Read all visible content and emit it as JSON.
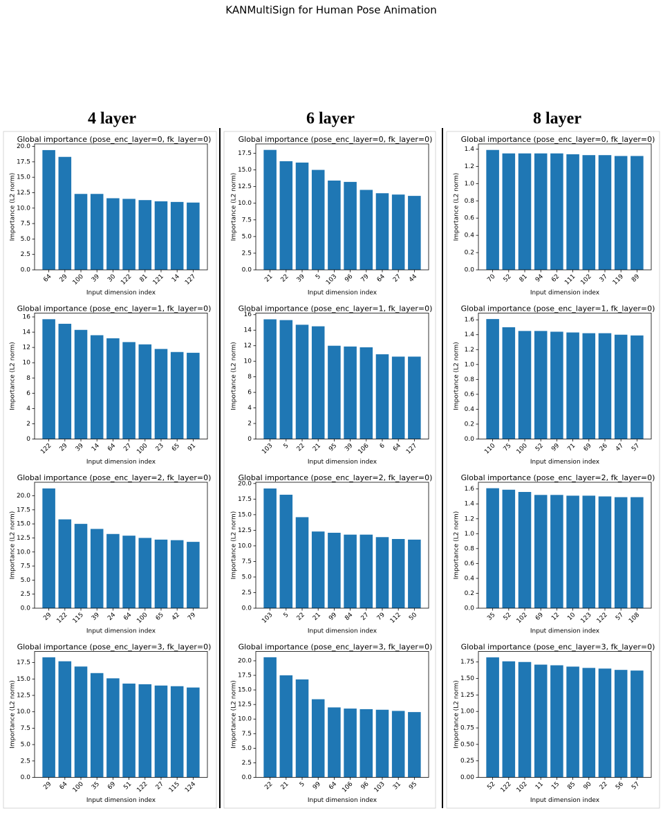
{
  "header": {
    "title": "KANMultiSign for Human Pose Animation",
    "columns": [
      "4 layer",
      "6 layer",
      "8 layer"
    ]
  },
  "chart_data": [
    {
      "type": "bar",
      "title": "Global importance (pose_enc_layer=0, fk_layer=0)",
      "xlabel": "Input dimension index",
      "ylabel": "Importance (L2 norm)",
      "color": "#1f77b4",
      "categories": [
        "64",
        "29",
        "100",
        "39",
        "30",
        "122",
        "81",
        "121",
        "14",
        "127"
      ],
      "values": [
        19.4,
        18.3,
        12.3,
        12.3,
        11.6,
        11.5,
        11.3,
        11.1,
        11.0,
        10.9
      ],
      "ylim": [
        0,
        20.4
      ],
      "yticks": [
        {
          "value": 0,
          "label": "0.0"
        },
        2.5,
        {
          "value": 5,
          "label": "5.0"
        },
        7.5,
        {
          "value": 10,
          "label": "10.0"
        },
        12.5,
        {
          "value": 15,
          "label": "15.0"
        },
        17.5,
        {
          "value": 20,
          "label": "20.0"
        }
      ]
    },
    {
      "type": "bar",
      "title": "Global importance (pose_enc_layer=1, fk_layer=0)",
      "xlabel": "Input dimension index",
      "ylabel": "Importance (L2 norm)",
      "color": "#1f77b4",
      "categories": [
        "122",
        "29",
        "39",
        "14",
        "64",
        "27",
        "100",
        "23",
        "65",
        "91"
      ],
      "values": [
        15.7,
        15.1,
        14.3,
        13.6,
        13.2,
        12.7,
        12.4,
        11.8,
        11.4,
        11.3
      ],
      "ylim": [
        0,
        16.5
      ],
      "yticks": [
        0,
        2,
        4,
        6,
        8,
        10,
        12,
        14,
        16
      ]
    },
    {
      "type": "bar",
      "title": "Global importance (pose_enc_layer=2, fk_layer=0)",
      "xlabel": "Input dimension index",
      "ylabel": "Importance (L2 norm)",
      "color": "#1f77b4",
      "categories": [
        "29",
        "122",
        "115",
        "39",
        "24",
        "64",
        "100",
        "65",
        "42",
        "79"
      ],
      "values": [
        21.3,
        15.8,
        15.0,
        14.1,
        13.2,
        12.9,
        12.5,
        12.2,
        12.1,
        11.8
      ],
      "ylim": [
        0,
        22.4
      ],
      "yticks": [
        {
          "value": 0,
          "label": "0.0"
        },
        2.5,
        {
          "value": 5,
          "label": "5.0"
        },
        7.5,
        {
          "value": 10,
          "label": "10.0"
        },
        12.5,
        {
          "value": 15,
          "label": "15.0"
        },
        17.5,
        {
          "value": 20,
          "label": "20.0"
        }
      ]
    },
    {
      "type": "bar",
      "title": "Global importance (pose_enc_layer=3, fk_layer=0)",
      "xlabel": "Input dimension index",
      "ylabel": "Importance (L2 norm)",
      "color": "#1f77b4",
      "categories": [
        "29",
        "64",
        "100",
        "35",
        "69",
        "51",
        "122",
        "27",
        "115",
        "124"
      ],
      "values": [
        18.3,
        17.7,
        16.9,
        15.9,
        15.1,
        14.3,
        14.2,
        14.0,
        13.9,
        13.7
      ],
      "ylim": [
        0,
        19.2
      ],
      "yticks": [
        {
          "value": 0,
          "label": "0.0"
        },
        2.5,
        {
          "value": 5,
          "label": "5.0"
        },
        7.5,
        {
          "value": 10,
          "label": "10.0"
        },
        12.5,
        {
          "value": 15,
          "label": "15.0"
        },
        17.5
      ]
    },
    {
      "type": "bar",
      "title": "Global importance (pose_enc_layer=0, fk_layer=0)",
      "xlabel": "Input dimension index",
      "ylabel": "Importance (L2 norm)",
      "color": "#1f77b4",
      "categories": [
        "21",
        "22",
        "39",
        "5",
        "103",
        "96",
        "79",
        "64",
        "27",
        "44"
      ],
      "values": [
        18.0,
        16.3,
        16.1,
        15.0,
        13.4,
        13.2,
        12.0,
        11.5,
        11.3,
        11.1
      ],
      "ylim": [
        0,
        18.9
      ],
      "yticks": [
        {
          "value": 0,
          "label": "0.0"
        },
        2.5,
        {
          "value": 5,
          "label": "5.0"
        },
        7.5,
        {
          "value": 10,
          "label": "10.0"
        },
        12.5,
        {
          "value": 15,
          "label": "15.0"
        },
        17.5
      ]
    },
    {
      "type": "bar",
      "title": "Global importance (pose_enc_layer=1, fk_layer=0)",
      "xlabel": "Input dimension index",
      "ylabel": "Importance (L2 norm)",
      "color": "#1f77b4",
      "categories": [
        "103",
        "5",
        "22",
        "21",
        "95",
        "39",
        "106",
        "6",
        "64",
        "127"
      ],
      "values": [
        15.4,
        15.3,
        14.7,
        14.5,
        12.0,
        11.9,
        11.8,
        10.9,
        10.6,
        10.6
      ],
      "ylim": [
        0,
        16.2
      ],
      "yticks": [
        0,
        2,
        4,
        6,
        8,
        10,
        12,
        14,
        16
      ]
    },
    {
      "type": "bar",
      "title": "Global importance (pose_enc_layer=2, fk_layer=0)",
      "xlabel": "Input dimension index",
      "ylabel": "Importance (L2 norm)",
      "color": "#1f77b4",
      "categories": [
        "103",
        "5",
        "22",
        "21",
        "99",
        "84",
        "27",
        "79",
        "112",
        "50"
      ],
      "values": [
        19.2,
        18.2,
        14.6,
        12.3,
        12.1,
        11.8,
        11.8,
        11.4,
        11.1,
        11.0
      ],
      "ylim": [
        0,
        20.2
      ],
      "yticks": [
        {
          "value": 0,
          "label": "0.0"
        },
        2.5,
        {
          "value": 5,
          "label": "5.0"
        },
        7.5,
        {
          "value": 10,
          "label": "10.0"
        },
        12.5,
        {
          "value": 15,
          "label": "15.0"
        },
        17.5,
        {
          "value": 20,
          "label": "20.0"
        }
      ]
    },
    {
      "type": "bar",
      "title": "Global importance (pose_enc_layer=3, fk_layer=0)",
      "xlabel": "Input dimension index",
      "ylabel": "Importance (L2 norm)",
      "color": "#1f77b4",
      "categories": [
        "22",
        "21",
        "5",
        "99",
        "64",
        "106",
        "96",
        "103",
        "31",
        "95"
      ],
      "values": [
        20.6,
        17.5,
        16.8,
        13.4,
        12.0,
        11.8,
        11.7,
        11.6,
        11.4,
        11.2
      ],
      "ylim": [
        0,
        21.6
      ],
      "yticks": [
        {
          "value": 0,
          "label": "0.0"
        },
        2.5,
        {
          "value": 5,
          "label": "5.0"
        },
        7.5,
        {
          "value": 10,
          "label": "10.0"
        },
        12.5,
        {
          "value": 15,
          "label": "15.0"
        },
        17.5,
        {
          "value": 20,
          "label": "20.0"
        }
      ]
    },
    {
      "type": "bar",
      "title": "Global importance (pose_enc_layer=0, fk_layer=0)",
      "xlabel": "Input dimension index",
      "ylabel": "Importance (L2 norm)",
      "color": "#1f77b4",
      "categories": [
        "70",
        "52",
        "81",
        "94",
        "62",
        "111",
        "102",
        "37",
        "119",
        "89"
      ],
      "values": [
        1.39,
        1.35,
        1.35,
        1.35,
        1.35,
        1.34,
        1.33,
        1.33,
        1.32,
        1.32
      ],
      "ylim": [
        0,
        1.46
      ],
      "yticks": [
        {
          "value": 0,
          "label": "0.0"
        },
        0.2,
        0.4,
        0.6,
        0.8,
        {
          "value": 1,
          "label": "1.0"
        },
        1.2,
        1.4
      ]
    },
    {
      "type": "bar",
      "title": "Global importance (pose_enc_layer=1, fk_layer=0)",
      "xlabel": "Input dimension index",
      "ylabel": "Importance (L2 norm)",
      "color": "#1f77b4",
      "categories": [
        "110",
        "75",
        "100",
        "52",
        "99",
        "71",
        "69",
        "26",
        "47",
        "57"
      ],
      "values": [
        1.61,
        1.5,
        1.45,
        1.45,
        1.44,
        1.43,
        1.42,
        1.42,
        1.4,
        1.39
      ],
      "ylim": [
        0,
        1.69
      ],
      "yticks": [
        {
          "value": 0,
          "label": "0.0"
        },
        0.2,
        0.4,
        0.6,
        0.8,
        {
          "value": 1,
          "label": "1.0"
        },
        1.2,
        1.4,
        1.6
      ]
    },
    {
      "type": "bar",
      "title": "Global importance (pose_enc_layer=2, fk_layer=0)",
      "xlabel": "Input dimension index",
      "ylabel": "Importance (L2 norm)",
      "color": "#1f77b4",
      "categories": [
        "35",
        "52",
        "102",
        "69",
        "12",
        "10",
        "123",
        "122",
        "57",
        "108"
      ],
      "values": [
        1.61,
        1.59,
        1.56,
        1.52,
        1.52,
        1.51,
        1.51,
        1.5,
        1.49,
        1.49
      ],
      "ylim": [
        0,
        1.69
      ],
      "yticks": [
        {
          "value": 0,
          "label": "0.0"
        },
        0.2,
        0.4,
        0.6,
        0.8,
        {
          "value": 1,
          "label": "1.0"
        },
        1.2,
        1.4,
        1.6
      ]
    },
    {
      "type": "bar",
      "title": "Global importance (pose_enc_layer=3, fk_layer=0)",
      "xlabel": "Input dimension index",
      "ylabel": "Importance (L2 norm)",
      "color": "#1f77b4",
      "categories": [
        "52",
        "122",
        "102",
        "11",
        "15",
        "85",
        "90",
        "22",
        "56",
        "57"
      ],
      "values": [
        1.82,
        1.76,
        1.75,
        1.71,
        1.7,
        1.68,
        1.66,
        1.65,
        1.63,
        1.62
      ],
      "ylim": [
        0,
        1.91
      ],
      "yticks": [
        {
          "value": 0,
          "label": "0.00"
        },
        0.25,
        {
          "value": 0.5,
          "label": "0.50"
        },
        0.75,
        {
          "value": 1,
          "label": "1.00"
        },
        1.25,
        {
          "value": 1.5,
          "label": "1.50"
        },
        1.75
      ]
    }
  ]
}
